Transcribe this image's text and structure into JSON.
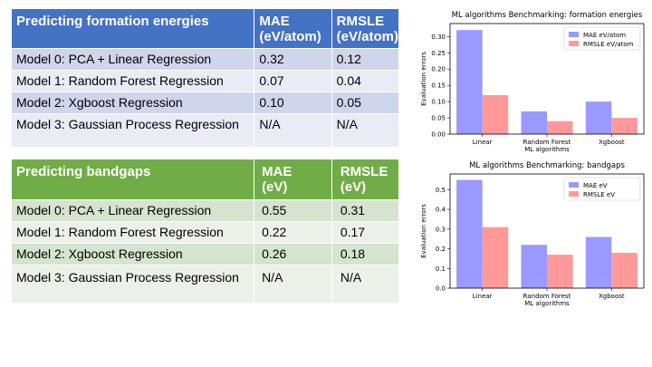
{
  "table1": {
    "header": [
      "Predicting formation energies",
      "MAE\n(eV/atom)",
      "RMSLE\n(eV/atom)"
    ],
    "rows": [
      [
        "Model 0: PCA + Linear Regression",
        "0.32",
        "0.12"
      ],
      [
        "Model 1: Random Forest Regression",
        "0.07",
        "0.04"
      ],
      [
        "Model 2: Xgboost Regression",
        "0.10",
        "0.05"
      ],
      [
        "Model 3: Gaussian Process Regression",
        "N/A",
        "N/A"
      ]
    ]
  },
  "table2": {
    "header": [
      "Predicting bandgaps",
      "MAE\n(eV)",
      "RMSLE\n(eV)"
    ],
    "rows": [
      [
        "Model 0: PCA + Linear Regression",
        "0.55",
        "0.31"
      ],
      [
        "Model 1: Random Forest Regression",
        "0.22",
        "0.17"
      ],
      [
        "Model 2: Xgboost Regression",
        "0.26",
        "0.18"
      ],
      [
        "Model 3: Gaussian Process Regression",
        "N/A",
        "N/A"
      ]
    ]
  },
  "colors": {
    "table1_header": "#4472c4",
    "table1_dark": "#cfd5ea",
    "table1_light": "#e9ebf5",
    "table2_header": "#70ad47",
    "table2_dark": "#d5e3cf",
    "table2_light": "#ebf1e9",
    "mae_bar": "#9999ff",
    "rmsle_bar": "#ff9999"
  },
  "chart_data": [
    {
      "type": "bar",
      "title": "ML algorithms Benchmarking: formation energies",
      "xlabel": "ML algorithms",
      "ylabel": "Evaluation errors",
      "categories": [
        "Linear",
        "Random Forest",
        "Xgboost"
      ],
      "series": [
        {
          "name": "MAE eV/atom",
          "values": [
            0.32,
            0.07,
            0.1
          ]
        },
        {
          "name": "RMSLE eV/atom",
          "values": [
            0.12,
            0.04,
            0.05
          ]
        }
      ],
      "ylim": [
        0,
        0.34
      ],
      "yticks": [
        "0.00",
        "0.05",
        "0.10",
        "0.15",
        "0.20",
        "0.25",
        "0.30"
      ],
      "legend": "top-right"
    },
    {
      "type": "bar",
      "title": "ML algorithms Benchmarking: bandgaps",
      "xlabel": "ML algorithms",
      "ylabel": "Evaluation errors",
      "categories": [
        "Linear",
        "Random Forest",
        "Xgboost"
      ],
      "series": [
        {
          "name": "MAE eV",
          "values": [
            0.55,
            0.22,
            0.26
          ]
        },
        {
          "name": "RMSLE eV",
          "values": [
            0.31,
            0.17,
            0.18
          ]
        }
      ],
      "ylim": [
        0,
        0.58
      ],
      "yticks": [
        "0.0",
        "0.1",
        "0.2",
        "0.3",
        "0.4",
        "0.5"
      ],
      "legend": "top-right"
    }
  ]
}
